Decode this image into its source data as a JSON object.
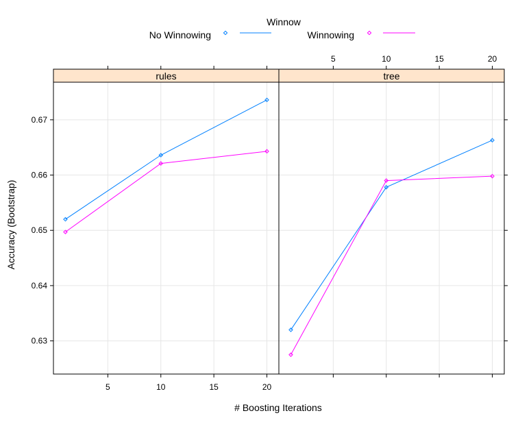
{
  "chart_data": {
    "type": "line",
    "legend": {
      "title": "Winnow",
      "placement": "top",
      "series": [
        {
          "label": "No Winnowing",
          "color": "#0080ff",
          "marker": "circle"
        },
        {
          "label": "Winnowing",
          "color": "#ff00ff",
          "marker": "circle"
        }
      ]
    },
    "xlabel": "# Boosting Iterations",
    "ylabel": "Accuracy (Bootstrap)",
    "xlim": [
      0,
      21
    ],
    "ylim": [
      0.624,
      0.6768
    ],
    "x_ticks": [
      5,
      10,
      15,
      20
    ],
    "x_tick_labels": [
      "5",
      "10",
      "15",
      "20"
    ],
    "y_ticks": [
      0.63,
      0.64,
      0.65,
      0.66,
      0.67
    ],
    "y_tick_labels": [
      "0.63",
      "0.64",
      "0.65",
      "0.66",
      "0.67"
    ],
    "grid": true,
    "panels": [
      {
        "strip": "rules",
        "series": [
          {
            "name": "No Winnowing",
            "x": [
              1,
              10,
              20
            ],
            "y": [
              0.652,
              0.6636,
              0.6736
            ]
          },
          {
            "name": "Winnowing",
            "x": [
              1,
              10,
              20
            ],
            "y": [
              0.6497,
              0.6621,
              0.6643
            ]
          }
        ]
      },
      {
        "strip": "tree",
        "series": [
          {
            "name": "No Winnowing",
            "x": [
              1,
              10,
              20
            ],
            "y": [
              0.632,
              0.6578,
              0.6663
            ]
          },
          {
            "name": "Winnowing",
            "x": [
              1,
              10,
              20
            ],
            "y": [
              0.6275,
              0.659,
              0.6598
            ]
          }
        ]
      }
    ],
    "strip_color": "#ffe5cc"
  }
}
